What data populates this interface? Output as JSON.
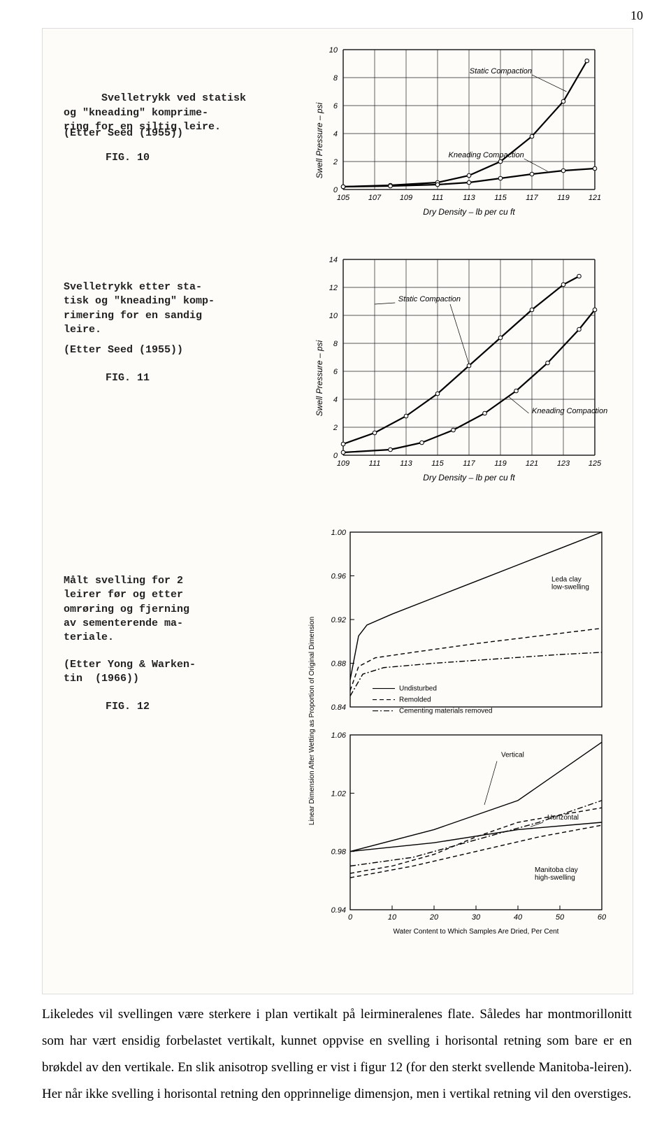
{
  "page_number": "10",
  "background_color": "#ffffff",
  "scan_bg": "#fdfcf9",
  "captions": {
    "fig10": {
      "text": "Svelletrykk ved statisk\nog \"kneading\" komprime-\nring for en siltig leire.",
      "source": "(Etter Seed (1955))",
      "figlabel": "FIG. 10"
    },
    "fig11": {
      "text": "Svelletrykk etter sta-\ntisk og \"kneading\" komp-\nrimering for en sandig\nleire.",
      "source": "(Etter Seed (1955))",
      "figlabel": "FIG. 11"
    },
    "fig12": {
      "text": "Målt svelling for 2\nleirer før og etter\nomrøring og fjerning\nav sementerende ma-\nteriale.",
      "source": "(Etter Yong & Warken-\ntin  (1966))",
      "figlabel": "FIG. 12"
    }
  },
  "chart10": {
    "type": "line",
    "xlabel": "Dry Density – lb per cu ft",
    "ylabel": "Swell Pressure – psi",
    "xlim": [
      105,
      121
    ],
    "xtick_step": 2,
    "ylim": [
      0,
      10
    ],
    "ytick_step": 2,
    "grid_color": "#222",
    "line_color": "#000",
    "series": [
      {
        "name": "Static Compaction",
        "label_pos": "upper-right",
        "points": [
          [
            105,
            0.2
          ],
          [
            108,
            0.3
          ],
          [
            111,
            0.5
          ],
          [
            113,
            1.0
          ],
          [
            115,
            2.0
          ],
          [
            117,
            3.8
          ],
          [
            119,
            6.3
          ],
          [
            120.5,
            9.2
          ]
        ],
        "markers": true
      },
      {
        "name": "Kneading Compaction",
        "label_pos": "lower-right",
        "points": [
          [
            105,
            0.2
          ],
          [
            108,
            0.25
          ],
          [
            111,
            0.35
          ],
          [
            113,
            0.5
          ],
          [
            115,
            0.8
          ],
          [
            117,
            1.1
          ],
          [
            119,
            1.35
          ],
          [
            121,
            1.5
          ]
        ],
        "markers": true
      }
    ]
  },
  "chart11": {
    "type": "line",
    "xlabel": "Dry Density – lb per cu ft",
    "ylabel": "Swell Pressure – psi",
    "xlim": [
      109,
      125
    ],
    "xtick_step": 2,
    "ylim": [
      0,
      14
    ],
    "ytick_step": 2,
    "grid_color": "#222",
    "line_color": "#000",
    "series": [
      {
        "name": "Static Compaction",
        "label_pos": "upper-left",
        "points": [
          [
            109,
            0.8
          ],
          [
            111,
            1.6
          ],
          [
            113,
            2.8
          ],
          [
            115,
            4.4
          ],
          [
            117,
            6.4
          ],
          [
            119,
            8.4
          ],
          [
            121,
            10.4
          ],
          [
            123,
            12.2
          ],
          [
            124,
            12.8
          ]
        ],
        "markers": true
      },
      {
        "name": "Kneading Compaction",
        "label_pos": "lower-right",
        "points": [
          [
            109,
            0.2
          ],
          [
            112,
            0.4
          ],
          [
            114,
            0.9
          ],
          [
            116,
            1.8
          ],
          [
            118,
            3.0
          ],
          [
            120,
            4.6
          ],
          [
            122,
            6.6
          ],
          [
            124,
            9.0
          ],
          [
            125,
            10.4
          ]
        ],
        "markers": true
      }
    ]
  },
  "chart12": {
    "type": "line",
    "xlabel": "Water Content to Which Samples Are Dried, Per Cent",
    "ylabel": "Linear Dimension After Wetting as Proportion of Original Dimension",
    "panels": [
      {
        "name": "upper",
        "title_right": "Leda clay\nlow-swelling",
        "ylim": [
          0.84,
          1.0
        ],
        "ytick_step": 0.04,
        "series": [
          {
            "style": "solid",
            "points": [
              [
                0,
                0.865
              ],
              [
                2,
                0.905
              ],
              [
                4,
                0.915
              ],
              [
                10,
                0.925
              ],
              [
                20,
                0.94
              ],
              [
                30,
                0.955
              ],
              [
                40,
                0.97
              ],
              [
                50,
                0.985
              ],
              [
                60,
                1.0
              ]
            ]
          },
          {
            "style": "dash",
            "points": [
              [
                0,
                0.855
              ],
              [
                2,
                0.877
              ],
              [
                6,
                0.885
              ],
              [
                15,
                0.89
              ],
              [
                30,
                0.898
              ],
              [
                45,
                0.905
              ],
              [
                60,
                0.912
              ]
            ]
          },
          {
            "style": "dashdot",
            "points": [
              [
                0,
                0.85
              ],
              [
                3,
                0.87
              ],
              [
                8,
                0.876
              ],
              [
                20,
                0.88
              ],
              [
                35,
                0.884
              ],
              [
                50,
                0.888
              ],
              [
                60,
                0.89
              ]
            ]
          }
        ],
        "legend": [
          {
            "style": "solid",
            "label": "Undisturbed"
          },
          {
            "style": "dash",
            "label": "Remolded"
          },
          {
            "style": "dashdot",
            "label": "Cementing materials removed"
          }
        ]
      },
      {
        "name": "lower",
        "title_right": "Manitoba clay\nhigh-swelling",
        "ylim": [
          0.94,
          1.06
        ],
        "ytick_step": 0.04,
        "annot": [
          "Vertical",
          "Horizontal"
        ],
        "series": [
          {
            "style": "solid",
            "points": [
              [
                0,
                0.98
              ],
              [
                20,
                0.995
              ],
              [
                40,
                1.015
              ],
              [
                60,
                1.055
              ]
            ]
          },
          {
            "style": "solid",
            "points": [
              [
                0,
                0.98
              ],
              [
                20,
                0.986
              ],
              [
                40,
                0.995
              ],
              [
                60,
                1.0
              ]
            ]
          },
          {
            "style": "dash",
            "points": [
              [
                0,
                0.965
              ],
              [
                10,
                0.97
              ],
              [
                20,
                0.978
              ],
              [
                30,
                0.99
              ],
              [
                40,
                1.0
              ],
              [
                50,
                1.005
              ],
              [
                60,
                1.01
              ]
            ]
          },
          {
            "style": "dash",
            "points": [
              [
                0,
                0.962
              ],
              [
                15,
                0.97
              ],
              [
                30,
                0.98
              ],
              [
                45,
                0.99
              ],
              [
                60,
                0.998
              ]
            ]
          },
          {
            "style": "dashdot",
            "points": [
              [
                0,
                0.97
              ],
              [
                15,
                0.976
              ],
              [
                30,
                0.988
              ],
              [
                45,
                1.0
              ],
              [
                60,
                1.015
              ]
            ]
          }
        ]
      }
    ],
    "xlim": [
      0,
      60
    ],
    "xtick_step": 10,
    "line_color": "#000"
  },
  "body_paragraph": "Likeledes vil svellingen være sterkere i plan vertikalt på leirmineralenes flate. Således har montmorillonitt som har vært ensidig forbelastet vertikalt, kunnet oppvise en svelling i horisontal retning som bare er en brøkdel av den vertikale. En slik anisotrop svelling er vist i figur 12 (for den sterkt svellende Manitoba-leiren). Her når ikke svelling i horisontal retning den opprinnelige dimensjon, men i vertikal retning vil den overstiges."
}
